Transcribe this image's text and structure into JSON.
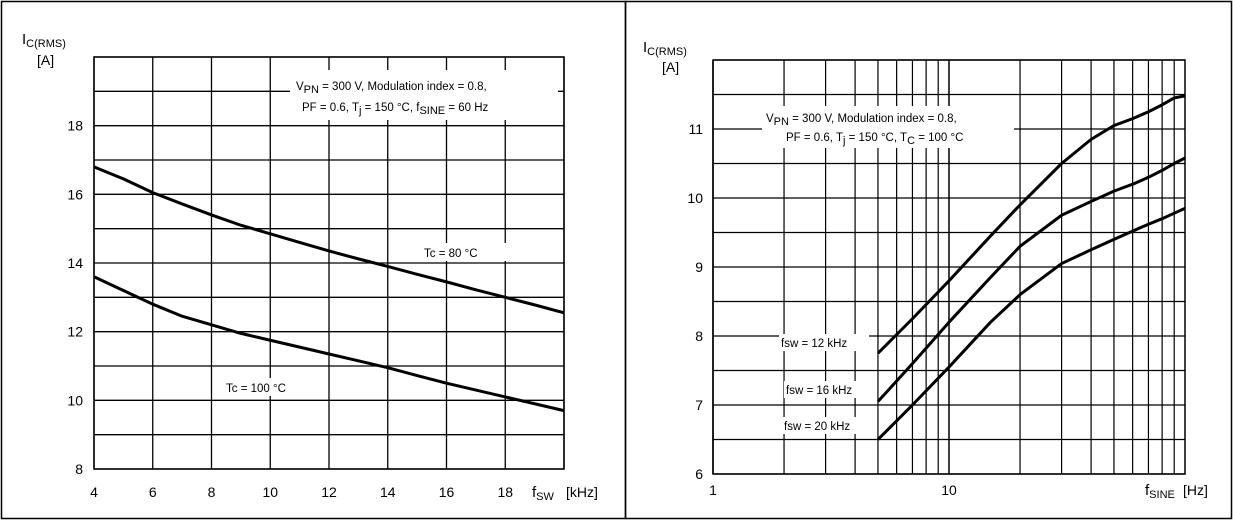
{
  "chart_data": [
    {
      "type": "line",
      "title": "",
      "ylabel_main": "I",
      "ylabel_sub": "C(RMS)",
      "yunit": "[A]",
      "xlabel_main": "f",
      "xlabel_sub": "SW",
      "xunit": "[kHz]",
      "xlim": [
        4,
        20
      ],
      "ylim": [
        8,
        20
      ],
      "xticks": [
        "4",
        "6",
        "8",
        "10",
        "12",
        "14",
        "16",
        "18"
      ],
      "yticks": [
        "8",
        "10",
        "12",
        "14",
        "16",
        "18"
      ],
      "grid": true,
      "conditions": {
        "line1_parts": [
          "V",
          "PN",
          " = 300 V, Modulation index = 0.8,"
        ],
        "line2_parts": [
          "PF = 0.6, T",
          "j",
          " = 150 °C, f",
          "SINE",
          " = 60 Hz"
        ]
      },
      "series": [
        {
          "name": "Tc = 80 °C",
          "x": [
            4,
            5,
            6,
            7,
            8,
            9,
            10,
            11,
            12,
            13,
            14,
            15,
            16,
            17,
            18,
            19,
            20
          ],
          "y": [
            16.8,
            16.45,
            16.05,
            15.72,
            15.4,
            15.1,
            14.85,
            14.6,
            14.35,
            14.12,
            13.9,
            13.67,
            13.45,
            13.22,
            13.0,
            12.78,
            12.55
          ]
        },
        {
          "name": "Tc = 100 °C",
          "x": [
            4,
            5,
            6,
            7,
            8,
            9,
            10,
            11,
            12,
            13,
            14,
            15,
            16,
            17,
            18,
            19,
            20
          ],
          "y": [
            13.6,
            13.2,
            12.8,
            12.45,
            12.2,
            11.95,
            11.75,
            11.55,
            11.35,
            11.15,
            10.95,
            10.72,
            10.5,
            10.3,
            10.1,
            9.9,
            9.7
          ]
        }
      ]
    },
    {
      "type": "line",
      "title": "",
      "ylabel_main": "I",
      "ylabel_sub": "C(RMS)",
      "yunit": "[A]",
      "xlabel_main": "f",
      "xlabel_sub": "SINE",
      "xunit": "[Hz]",
      "xscale": "log",
      "xlim": [
        1,
        100
      ],
      "ylim": [
        6,
        12
      ],
      "xticks": [
        "1",
        "10"
      ],
      "yticks": [
        "6",
        "7",
        "8",
        "9",
        "10",
        "11"
      ],
      "grid": true,
      "conditions": {
        "line1_parts": [
          "V",
          "PN",
          " = 300 V, Modulation index = 0.8,"
        ],
        "line2_parts": [
          "PF = 0.6, T",
          "j",
          " = 150 °C, T",
          "C",
          " = 100 °C"
        ]
      },
      "series": [
        {
          "name": "fsw = 12 kHz",
          "x": [
            5,
            7,
            10,
            15,
            20,
            30,
            40,
            50,
            60,
            70,
            80,
            90,
            100
          ],
          "y": [
            7.75,
            8.25,
            8.8,
            9.45,
            9.9,
            10.5,
            10.85,
            11.05,
            11.15,
            11.25,
            11.35,
            11.45,
            11.48
          ]
        },
        {
          "name": "fsw = 16 kHz",
          "x": [
            5,
            7,
            10,
            15,
            20,
            30,
            40,
            50,
            60,
            70,
            80,
            90,
            100
          ],
          "y": [
            7.05,
            7.6,
            8.2,
            8.85,
            9.3,
            9.75,
            9.95,
            10.1,
            10.2,
            10.3,
            10.4,
            10.5,
            10.58
          ]
        },
        {
          "name": "fsw = 20 kHz",
          "x": [
            5,
            7,
            10,
            15,
            20,
            30,
            40,
            50,
            60,
            70,
            80,
            90,
            100
          ],
          "y": [
            6.5,
            7.0,
            7.55,
            8.2,
            8.6,
            9.05,
            9.25,
            9.4,
            9.52,
            9.62,
            9.7,
            9.78,
            9.85
          ]
        }
      ]
    }
  ]
}
